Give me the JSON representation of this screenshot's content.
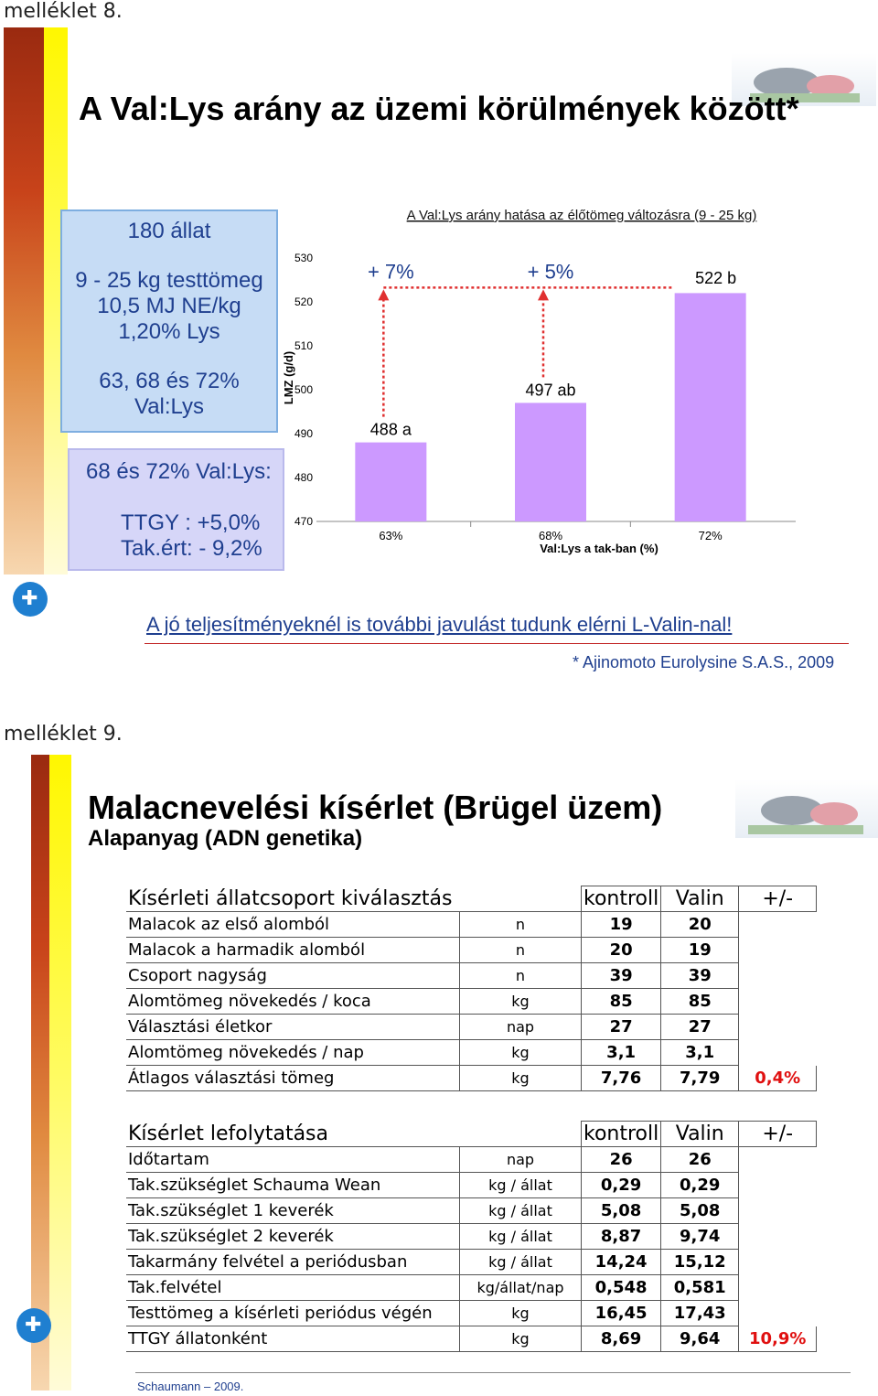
{
  "slide1": {
    "label": "melléklet 8.",
    "title": "A Val:Lys arány az üzemi körülmények között*",
    "info": {
      "line1": "180 állat",
      "line2": "9 - 25 kg testtömeg",
      "line3": "10,5 MJ NE/kg",
      "line4": "1,20% Lys",
      "line5": "63, 68 és 72%",
      "line6": "Val:Lys"
    },
    "result": {
      "heading": "68 és 72% Val:Lys:",
      "line1": "TTGY : +5,0%",
      "line2": "Tak.ért: - 9,2%"
    },
    "footer_text": "A jó teljesítményeknél is további javulást tudunk elérni L-Valin-nal!",
    "source": "* Ajinomoto Eurolysine S.A.S., 2009"
  },
  "chart_data": {
    "type": "bar",
    "title": "A Val:Lys arány hatása az élőtömeg változásra (9 - 25 kg)",
    "ylabel": "LMZ (g/d)",
    "xlabel": "Val:Lys a tak-ban  (%)",
    "categories": [
      "63%",
      "68%",
      "72%"
    ],
    "values": [
      488,
      497,
      522
    ],
    "bar_labels": [
      "488 a",
      "497 ab",
      "522 b"
    ],
    "ylim": [
      470,
      530
    ],
    "yticks": [
      "470",
      "480",
      "490",
      "500",
      "510",
      "520",
      "530"
    ],
    "annotations": [
      "+ 7%",
      "+ 5%"
    ],
    "bar_color": "#cc99ff",
    "arrow_color": "#e03030"
  },
  "slide2": {
    "label": "melléklet 9.",
    "title": "Malacnevelési kísérlet (Brügel üzem)",
    "subtitle": "Alapanyag (ADN genetika)",
    "source": "Schaumann – 2009.",
    "table1": {
      "header": [
        "Kísérleti állatcsoport kiválasztás",
        "",
        "kontroll",
        "Valin",
        "+/-"
      ],
      "rows": [
        [
          "Malacok az első alomból",
          "n",
          "19",
          "20",
          ""
        ],
        [
          "Malacok a harmadik alomból",
          "n",
          "20",
          "19",
          ""
        ],
        [
          "Csoport nagyság",
          "n",
          "39",
          "39",
          ""
        ],
        [
          "Alomtömeg növekedés / koca",
          "kg",
          "85",
          "85",
          ""
        ],
        [
          "Választási életkor",
          "nap",
          "27",
          "27",
          ""
        ],
        [
          "Alomtömeg növekedés / nap",
          "kg",
          "3,1",
          "3,1",
          ""
        ],
        [
          "Átlagos választási tömeg",
          "kg",
          "7,76",
          "7,79",
          "0,4%"
        ]
      ]
    },
    "table2": {
      "header": [
        "Kísérlet lefolytatása",
        "",
        "kontroll",
        "Valin",
        "+/-"
      ],
      "rows": [
        [
          "Időtartam",
          "nap",
          "26",
          "26",
          ""
        ],
        [
          "Tak.szükséglet Schauma Wean",
          "kg / állat",
          "0,29",
          "0,29",
          ""
        ],
        [
          "Tak.szükséglet 1 keverék",
          "kg / állat",
          "5,08",
          "5,08",
          ""
        ],
        [
          "Tak.szükséglet 2 keverék",
          "kg / állat",
          "8,87",
          "9,74",
          ""
        ],
        [
          "Takarmány felvétel a periódusban",
          "kg / állat",
          "14,24",
          "15,12",
          ""
        ],
        [
          "Tak.felvétel",
          "kg/állat/nap",
          "0,548",
          "0,581",
          ""
        ],
        [
          "Testtömeg a kísérleti periódus végén",
          "kg",
          "16,45",
          "17,43",
          ""
        ],
        [
          "TTGY állatonként",
          "kg",
          "8,69",
          "9,64",
          "10,9%"
        ]
      ]
    }
  },
  "colors": {
    "title_blue": "#1f3f8f",
    "accent_red": "#e01010"
  }
}
